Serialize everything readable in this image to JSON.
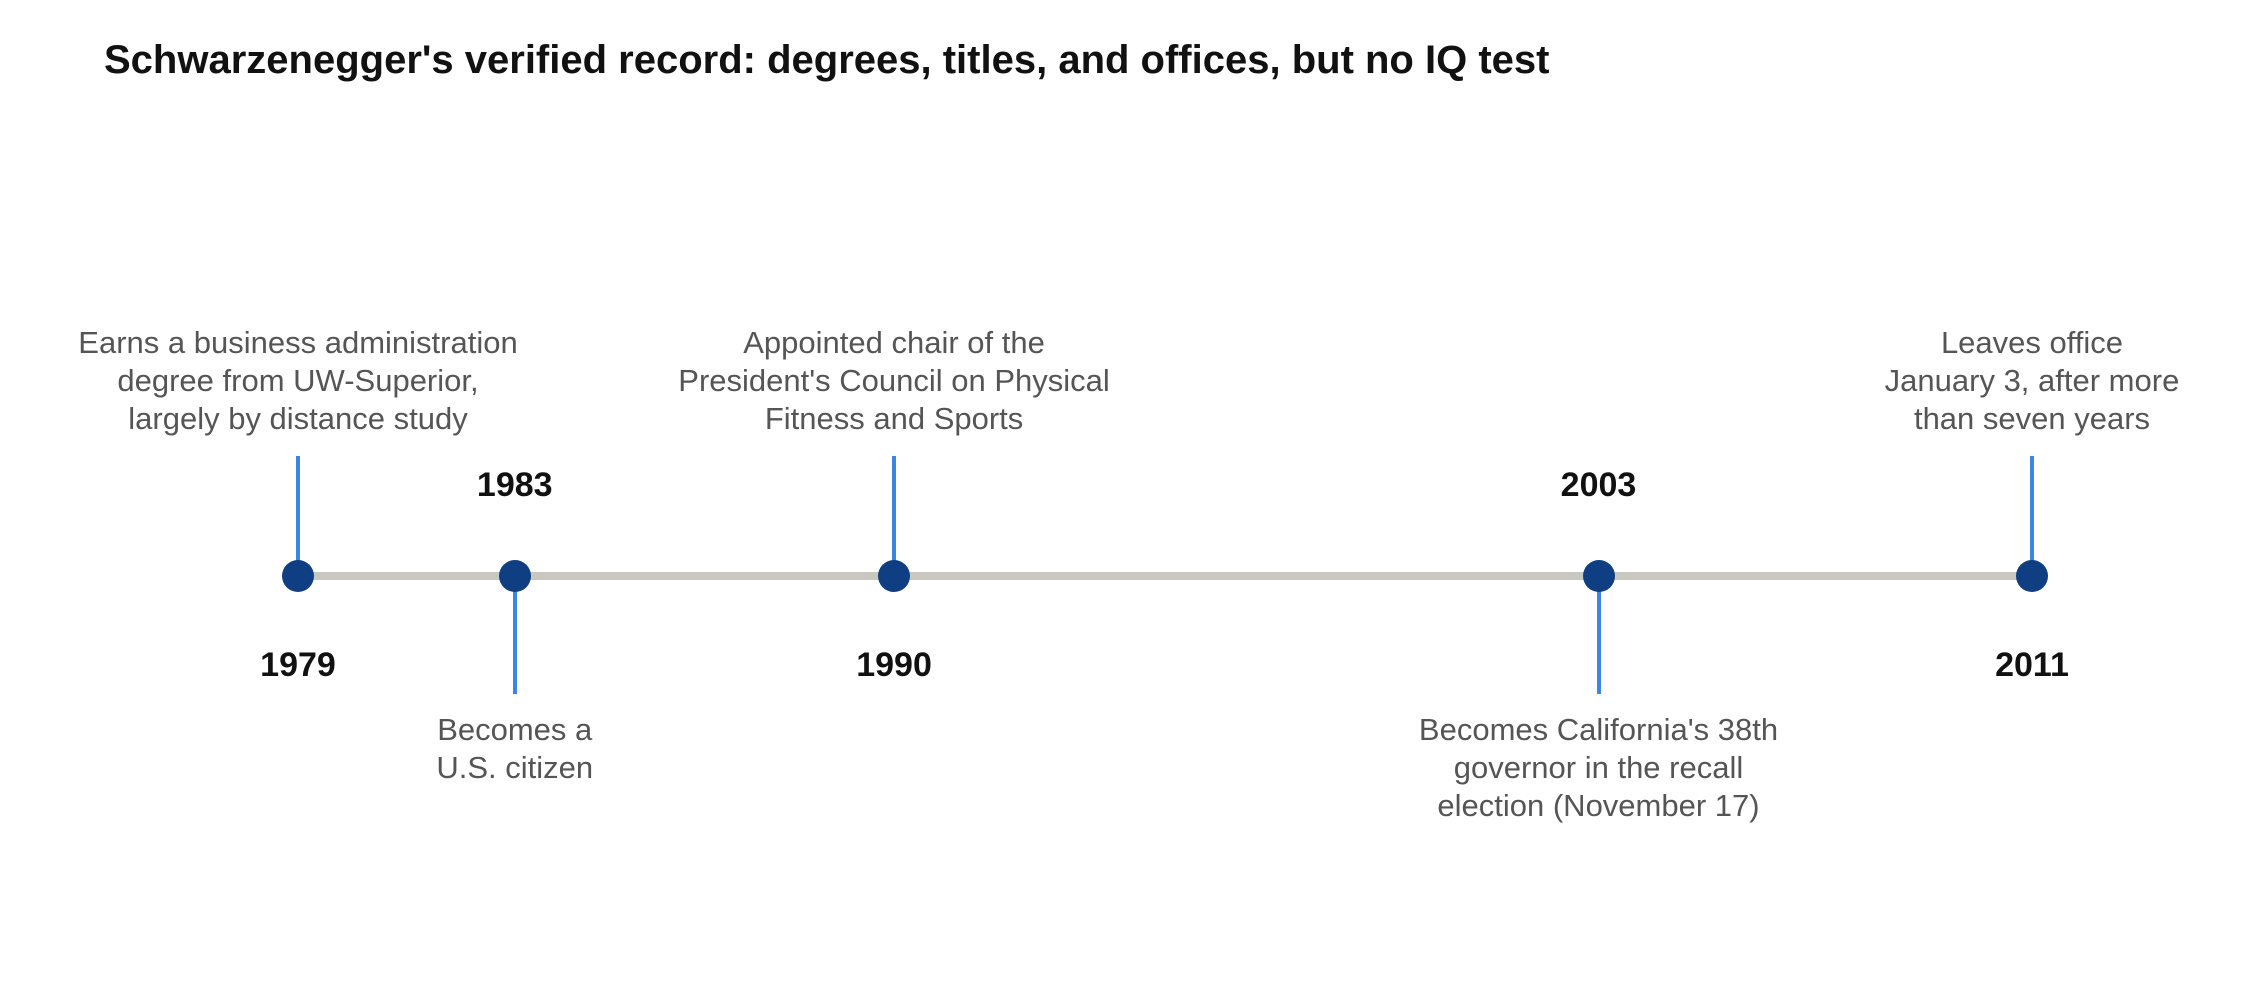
{
  "title": "Schwarzenegger's verified record: degrees, titles, and offices, but no IQ test",
  "colors": {
    "axis": "#c8c8c0",
    "dot": "#0f3f82",
    "connector": "#3a86e0",
    "year_text": "#111111",
    "label_text": "#555555"
  },
  "range": [
    1979,
    2011
  ],
  "events": [
    {
      "year": 1979,
      "side": "above",
      "year_label": "1979",
      "lines": [
        "Earns a business administration",
        "degree from UW-Superior,",
        "largely by distance study"
      ]
    },
    {
      "year": 1983,
      "side": "below",
      "year_label": "1983",
      "lines": [
        "Becomes a",
        "U.S. citizen"
      ]
    },
    {
      "year": 1990,
      "side": "above",
      "year_label": "1990",
      "lines": [
        "Appointed chair of the",
        "President's Council on Physical",
        "Fitness and Sports"
      ]
    },
    {
      "year": 2003,
      "side": "below",
      "year_label": "2003",
      "lines": [
        "Becomes California's 38th",
        "governor in the recall",
        "election (November 17)"
      ]
    },
    {
      "year": 2011,
      "side": "above",
      "year_label": "2011",
      "lines": [
        "Leaves office",
        "January 3, after more",
        "than seven years"
      ]
    }
  ]
}
